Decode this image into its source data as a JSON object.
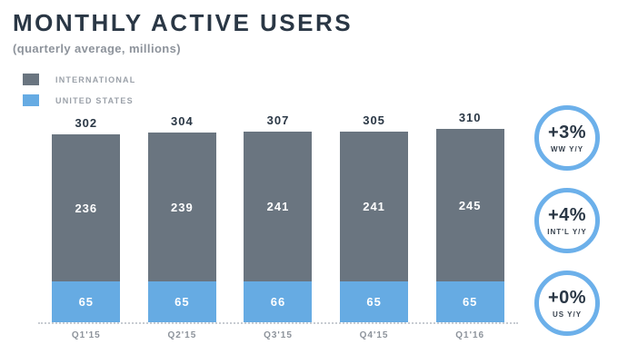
{
  "page": {
    "title": "MONTHLY ACTIVE USERS",
    "subtitle": "(quarterly average, millions)"
  },
  "legend": {
    "items": [
      {
        "label": "INTERNATIONAL",
        "color": "#6a7580"
      },
      {
        "label": "UNITED STATES",
        "color": "#66abe3"
      }
    ]
  },
  "chart_data": {
    "type": "bar",
    "stacked": true,
    "title": "MONTHLY ACTIVE USERS",
    "subtitle": "(quarterly average, millions)",
    "unit": "millions",
    "categories": [
      "Q1'15",
      "Q2'15",
      "Q3'15",
      "Q4'15",
      "Q1'16"
    ],
    "series": [
      {
        "name": "UNITED STATES",
        "color": "#66abe3",
        "values": [
          65,
          65,
          66,
          65,
          65
        ]
      },
      {
        "name": "INTERNATIONAL",
        "color": "#6a7580",
        "values": [
          236,
          239,
          241,
          241,
          245
        ]
      }
    ],
    "totals": [
      302,
      304,
      307,
      305,
      310
    ],
    "ylim": [
      0,
      330
    ],
    "grid": false,
    "axis_style": "dotted-baseline",
    "legend_position": "top-left"
  },
  "badges": [
    {
      "value": "+3%",
      "label": "WW Y/Y"
    },
    {
      "value": "+4%",
      "label": "INT'L Y/Y"
    },
    {
      "value": "+0%",
      "label": "US Y/Y"
    }
  ],
  "colors": {
    "international": "#6a7580",
    "united_states": "#66abe3",
    "badge_ring": "#6cb0ea",
    "heading_text": "#2a3745",
    "muted_text": "#8d939b",
    "axis_dotted": "#c8ccd2",
    "background": "#ffffff"
  }
}
